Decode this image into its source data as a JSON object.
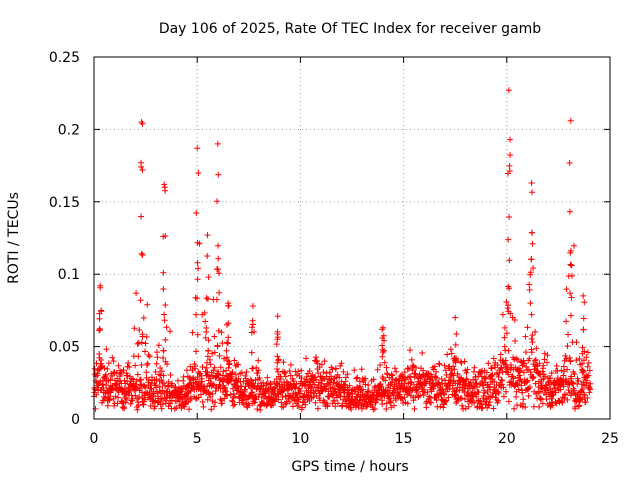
{
  "chart_data": {
    "type": "scatter",
    "title": "Day 106 of 2025, Rate Of TEC Index for receiver gamb",
    "xlabel": "GPS time / hours",
    "ylabel": "ROTI / TECUs",
    "xlim": [
      0,
      25
    ],
    "ylim": [
      0,
      0.25
    ],
    "xticks": [
      0,
      5,
      10,
      15,
      20,
      25
    ],
    "xtick_labels": [
      "0",
      "5",
      "10",
      "15",
      "20",
      "25"
    ],
    "yticks": [
      0,
      0.05,
      0.1,
      0.15,
      0.2,
      0.25
    ],
    "ytick_labels": [
      "0",
      "0.05",
      "0.1",
      "0.15",
      "0.2",
      "0.25"
    ],
    "grid": true,
    "marker": "+",
    "series": [
      {
        "name": "ROTI",
        "color": "#ff0000",
        "envelope_note": "Dense cloud of ROTI samples from ~0 to 24 h; typical level ~0.01-0.03 TECU/min; spikes listed in 'peaks'",
        "peaks": [
          {
            "x": 0.3,
            "y": 0.092
          },
          {
            "x": 2.3,
            "y": 0.205
          },
          {
            "x": 3.4,
            "y": 0.162
          },
          {
            "x": 5.0,
            "y": 0.187
          },
          {
            "x": 5.5,
            "y": 0.127
          },
          {
            "x": 6.0,
            "y": 0.19
          },
          {
            "x": 6.5,
            "y": 0.08
          },
          {
            "x": 7.7,
            "y": 0.078
          },
          {
            "x": 8.9,
            "y": 0.071
          },
          {
            "x": 14.0,
            "y": 0.063
          },
          {
            "x": 17.5,
            "y": 0.07
          },
          {
            "x": 20.1,
            "y": 0.227
          },
          {
            "x": 21.2,
            "y": 0.163
          },
          {
            "x": 23.1,
            "y": 0.206
          },
          {
            "x": 23.7,
            "y": 0.085
          }
        ]
      }
    ]
  }
}
